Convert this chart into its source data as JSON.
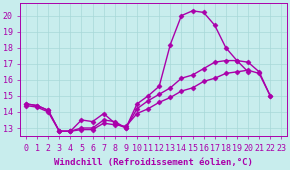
{
  "xlabel": "Windchill (Refroidissement éolien,°C)",
  "bg_color": "#c8eded",
  "grid_color": "#a8d8d8",
  "line_color": "#aa00aa",
  "xlim": [
    -0.5,
    23.5
  ],
  "ylim": [
    12.5,
    20.8
  ],
  "xticks": [
    0,
    1,
    2,
    3,
    4,
    5,
    6,
    7,
    8,
    9,
    10,
    11,
    12,
    13,
    14,
    15,
    16,
    17,
    18,
    19,
    20,
    21,
    22,
    23
  ],
  "yticks": [
    13,
    14,
    15,
    16,
    17,
    18,
    19,
    20
  ],
  "series": [
    {
      "x": [
        0,
        1,
        2,
        3,
        4,
        5,
        6,
        7,
        8,
        9,
        10,
        11,
        12,
        13,
        14,
        15,
        16,
        17,
        18,
        19,
        20
      ],
      "y": [
        14.5,
        14.4,
        14.1,
        12.8,
        12.8,
        13.5,
        13.4,
        13.9,
        13.3,
        13.0,
        14.5,
        15.0,
        15.6,
        18.2,
        20.0,
        20.3,
        20.2,
        19.4,
        18.0,
        17.2,
        16.5
      ]
    },
    {
      "x": [
        0,
        1,
        2,
        3,
        4,
        5,
        6,
        7,
        8,
        9,
        10,
        11,
        12,
        13,
        14,
        15,
        16,
        17,
        18,
        19,
        20,
        21,
        22
      ],
      "y": [
        14.5,
        14.4,
        14.1,
        12.8,
        12.8,
        13.0,
        13.0,
        13.5,
        13.4,
        13.0,
        14.2,
        14.7,
        15.1,
        15.5,
        16.1,
        16.3,
        16.7,
        17.1,
        17.2,
        17.2,
        17.1,
        16.5,
        15.0
      ]
    },
    {
      "x": [
        0,
        1,
        2,
        3,
        4,
        5,
        6,
        7,
        8,
        9,
        10,
        11,
        12,
        13,
        14,
        15,
        16,
        17,
        18,
        19,
        20,
        21,
        22
      ],
      "y": [
        14.4,
        14.3,
        14.0,
        12.8,
        12.8,
        12.9,
        12.9,
        13.3,
        13.2,
        13.1,
        13.9,
        14.2,
        14.6,
        14.9,
        15.3,
        15.5,
        15.9,
        16.1,
        16.4,
        16.5,
        16.6,
        16.4,
        15.0
      ]
    }
  ],
  "marker": "D",
  "markersize": 2.5,
  "linewidth": 1.0,
  "xlabel_fontsize": 6.5,
  "tick_fontsize": 6
}
